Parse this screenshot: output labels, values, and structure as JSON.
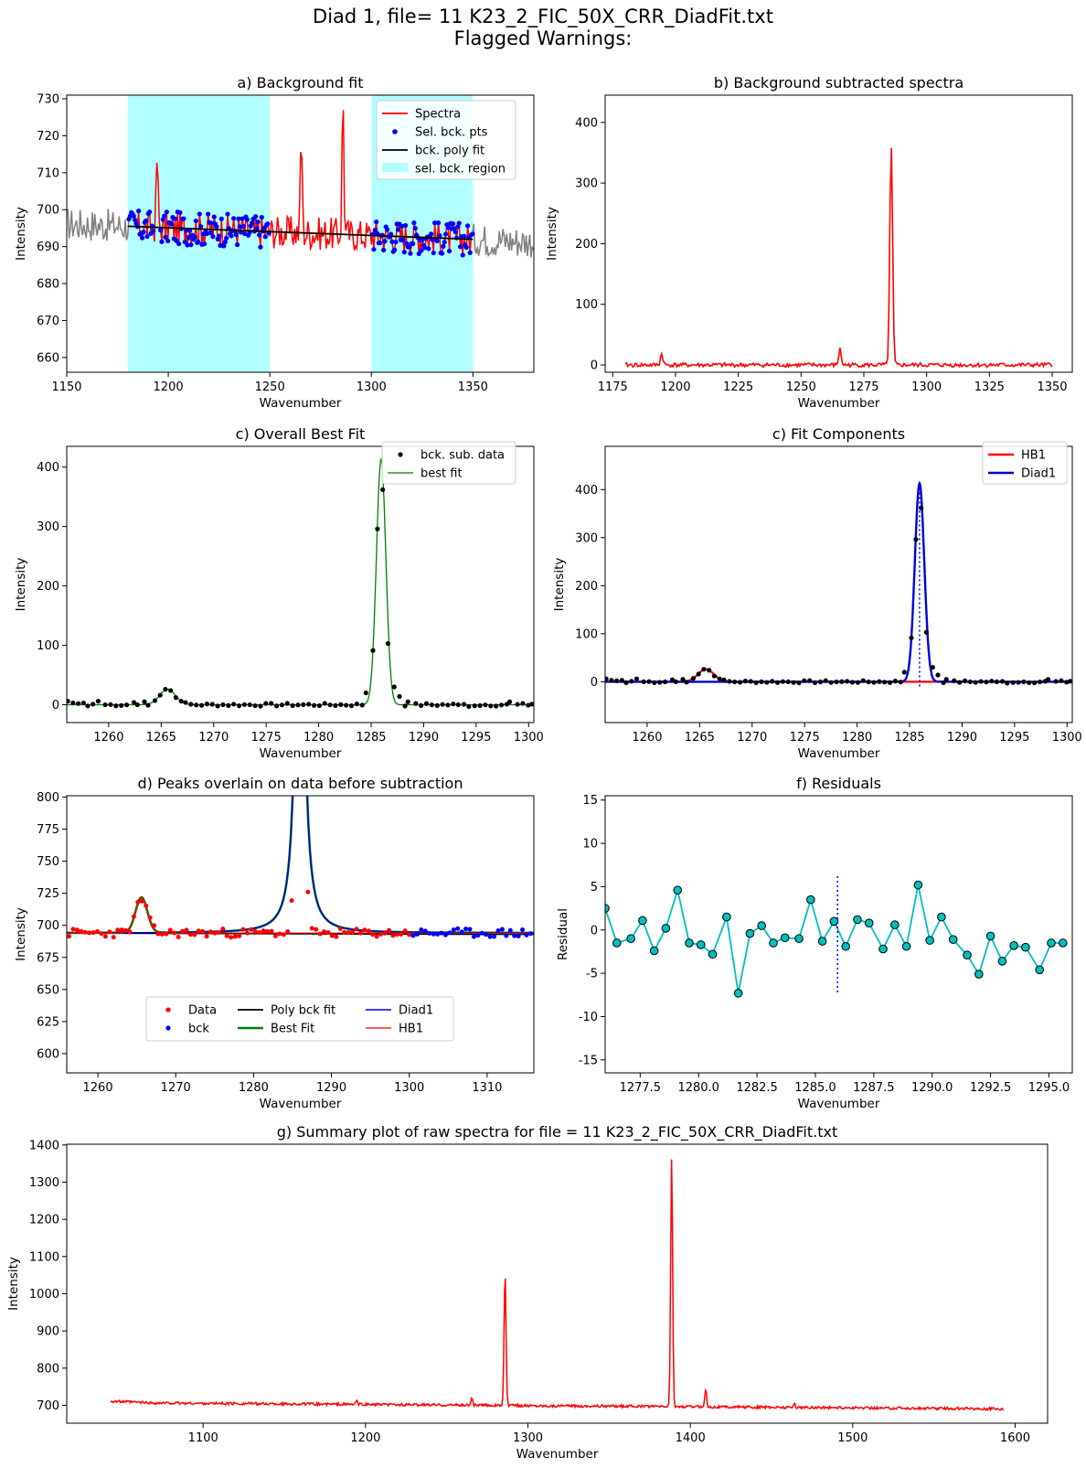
{
  "figure": {
    "title_line1": "Diad 1, file= 11 K23_2_FIC_50X_CRR_DiadFit.txt",
    "title_line2": "Flagged Warnings:"
  },
  "chart_data": [
    {
      "id": "a",
      "type": "line",
      "title": "a) Background fit",
      "xlabel": "Wavenumber",
      "ylabel": "Intensity",
      "xlim": [
        1150,
        1380
      ],
      "ylim": [
        656,
        731
      ],
      "xticks": [
        1150,
        1200,
        1250,
        1300,
        1350
      ],
      "yticks": [
        660,
        670,
        680,
        690,
        700,
        710,
        720,
        730
      ],
      "legend_position": "top-right",
      "legend": [
        "Spectra",
        "Sel. bck. pts",
        "bck. poly fit",
        "sel. bck. region"
      ],
      "bck_regions": [
        [
          1180,
          1250
        ],
        [
          1300,
          1350
        ]
      ],
      "baseline": {
        "y_at_1180": 695.5,
        "y_at_1350": 692.0
      },
      "spectrum_peaks": [
        {
          "x": 1194.5,
          "height": 714
        },
        {
          "x": 1265.5,
          "height": 720.5
        },
        {
          "x": 1286,
          "height": 731
        }
      ],
      "colors": {
        "spectra": "#ff0000",
        "raw": "#808080",
        "points": "#0000ff",
        "fit": "#000000",
        "region": "#b2ffff"
      }
    },
    {
      "id": "b",
      "type": "line",
      "title": "b) Background subtracted spectra",
      "xlabel": "Wavenumber",
      "ylabel": "Intensity",
      "xlim": [
        1172,
        1358
      ],
      "ylim": [
        -12,
        445
      ],
      "xticks": [
        1175,
        1200,
        1225,
        1250,
        1275,
        1300,
        1325,
        1350
      ],
      "yticks": [
        0,
        100,
        200,
        300,
        400
      ],
      "peaks": [
        {
          "x": 1194.5,
          "height": 18
        },
        {
          "x": 1265.5,
          "height": 26
        },
        {
          "x": 1285.9,
          "height": 362
        }
      ],
      "colors": {
        "line": "#ff0000"
      }
    },
    {
      "id": "c1",
      "type": "line",
      "title": "c) Overall Best Fit",
      "xlabel": "Wavenumber",
      "ylabel": "Intensity",
      "xlim": [
        1256,
        1300.5
      ],
      "ylim": [
        -30,
        435
      ],
      "xticks": [
        1260,
        1265,
        1270,
        1275,
        1280,
        1285,
        1290,
        1295,
        1300
      ],
      "yticks": [
        0,
        100,
        200,
        300,
        400
      ],
      "legend_position": "top-right",
      "legend": [
        "bck. sub. data",
        "best fit"
      ],
      "fit_peaks": [
        {
          "center": 1265.6,
          "amp": 26,
          "width": 0.75
        },
        {
          "center": 1285.95,
          "amp": 413,
          "width": 0.45
        }
      ],
      "data_points": [
        [
          1256.1,
          6
        ],
        [
          1256.6,
          3
        ],
        [
          1257.1,
          2
        ],
        [
          1257.6,
          3
        ],
        [
          1258.0,
          -2
        ],
        [
          1258.5,
          1
        ],
        [
          1259.0,
          6
        ],
        [
          1262.4,
          4
        ],
        [
          1263.4,
          5
        ],
        [
          1264.4,
          7
        ],
        [
          1264.9,
          16
        ],
        [
          1265.4,
          26
        ],
        [
          1265.9,
          24
        ],
        [
          1266.4,
          12
        ],
        [
          1266.9,
          6
        ],
        [
          1284.5,
          20
        ],
        [
          1285.6,
          296
        ],
        [
          1286.1,
          362
        ],
        [
          1286.6,
          103
        ],
        [
          1287.2,
          30
        ],
        [
          1287.7,
          14
        ],
        [
          1288.5,
          5
        ],
        [
          1293.3,
          0
        ],
        [
          1294.3,
          -3
        ],
        [
          1298.2,
          5
        ],
        [
          1300.3,
          1
        ]
      ],
      "colors": {
        "points": "#000000",
        "fit": "#008000"
      }
    },
    {
      "id": "c2",
      "type": "line",
      "title": "c) Fit Components",
      "xlabel": "Wavenumber",
      "ylabel": "Intensity",
      "xlim": [
        1256,
        1300.5
      ],
      "ylim": [
        -85,
        490
      ],
      "xticks": [
        1260,
        1265,
        1270,
        1275,
        1280,
        1285,
        1290,
        1295,
        1300
      ],
      "yticks": [
        0,
        100,
        200,
        300,
        400
      ],
      "legend_position": "top-right",
      "legend": [
        "HB1",
        "Diad1"
      ],
      "peak_center_marker": 1285.95,
      "colors": {
        "hb1": "#ff0000",
        "diad1": "#0000dd",
        "points": "#000000"
      }
    },
    {
      "id": "d",
      "type": "line",
      "title": "d) Peaks overlain on data before subtraction",
      "xlabel": "Wavenumber",
      "ylabel": "Intensity",
      "xlim": [
        1256,
        1316
      ],
      "ylim": [
        585,
        801
      ],
      "xticks": [
        1260,
        1270,
        1280,
        1290,
        1300,
        1310
      ],
      "yticks": [
        600,
        625,
        650,
        675,
        700,
        725,
        750,
        775,
        800
      ],
      "legend_position": "lower-center",
      "legend": [
        "Data",
        "bck",
        "Poly bck fit",
        "Best Fit",
        "Diad1",
        "HB1"
      ],
      "baseline": 694,
      "colors": {
        "data": "#ff0000",
        "bck": "#0000ff",
        "poly": "#000000",
        "best": "#008000",
        "diad": "#0000dd",
        "hb1": "#ff0000"
      }
    },
    {
      "id": "f",
      "type": "line",
      "title": "f) Residuals",
      "xlabel": "Wavenumber",
      "ylabel": "Residual",
      "xlim": [
        1276,
        1296
      ],
      "ylim": [
        -16.5,
        15.5
      ],
      "xticks": [
        1277.5,
        1280.0,
        1282.5,
        1285.0,
        1287.5,
        1290.0,
        1292.5,
        1295.0
      ],
      "yticks": [
        -15,
        -10,
        -5,
        0,
        5,
        10,
        15
      ],
      "peak_center_marker": 1285.95,
      "residuals": [
        [
          1276.0,
          2.5
        ],
        [
          1276.5,
          -1.5
        ],
        [
          1277.1,
          -1.0
        ],
        [
          1277.6,
          1.1
        ],
        [
          1278.1,
          -2.4
        ],
        [
          1278.6,
          0.2
        ],
        [
          1279.1,
          4.6
        ],
        [
          1279.6,
          -1.5
        ],
        [
          1280.1,
          -1.7
        ],
        [
          1280.6,
          -2.8
        ],
        [
          1281.2,
          1.5
        ],
        [
          1281.7,
          -7.3
        ],
        [
          1282.2,
          -0.4
        ],
        [
          1282.7,
          0.5
        ],
        [
          1283.2,
          -1.5
        ],
        [
          1283.7,
          -0.9
        ],
        [
          1284.3,
          -1.0
        ],
        [
          1284.8,
          3.5
        ],
        [
          1285.3,
          -1.3
        ],
        [
          1285.8,
          1.0
        ],
        [
          1286.3,
          -1.9
        ],
        [
          1286.8,
          1.2
        ],
        [
          1287.3,
          0.8
        ],
        [
          1287.9,
          -2.2
        ],
        [
          1288.4,
          0.6
        ],
        [
          1288.9,
          -1.9
        ],
        [
          1289.4,
          5.2
        ],
        [
          1289.9,
          -1.2
        ],
        [
          1290.4,
          1.5
        ],
        [
          1290.9,
          -1.1
        ],
        [
          1291.5,
          -2.9
        ],
        [
          1292.0,
          -5.1
        ],
        [
          1292.5,
          -0.7
        ],
        [
          1293.0,
          -3.6
        ],
        [
          1293.5,
          -1.8
        ],
        [
          1294.0,
          -2.0
        ],
        [
          1294.6,
          -4.6
        ],
        [
          1295.1,
          -1.5
        ],
        [
          1295.6,
          -1.5
        ]
      ],
      "colors": {
        "line": "#00bfbf",
        "marker_edge": "#000000",
        "center": "#0000ff"
      }
    },
    {
      "id": "g",
      "type": "line",
      "title": "g) Summary plot of raw spectra for file = 11 K23_2_FIC_50X_CRR_DiadFit.txt",
      "xlabel": "Wavenumber",
      "ylabel": "Intensity",
      "xlim": [
        1016,
        1620
      ],
      "ylim": [
        652,
        1402
      ],
      "xticks": [
        1100,
        1200,
        1300,
        1400,
        1500,
        1600
      ],
      "yticks": [
        700,
        800,
        900,
        1000,
        1100,
        1200,
        1300,
        1400
      ],
      "x_range_data": [
        1043,
        1593
      ],
      "peaks": [
        {
          "x": 1128,
          "height": 707
        },
        {
          "x": 1194.5,
          "height": 712
        },
        {
          "x": 1265.5,
          "height": 720
        },
        {
          "x": 1285.9,
          "height": 1057
        },
        {
          "x": 1388.5,
          "height": 1368
        },
        {
          "x": 1409.5,
          "height": 745
        },
        {
          "x": 1464,
          "height": 703
        }
      ],
      "colors": {
        "line": "#ff0000"
      }
    }
  ]
}
